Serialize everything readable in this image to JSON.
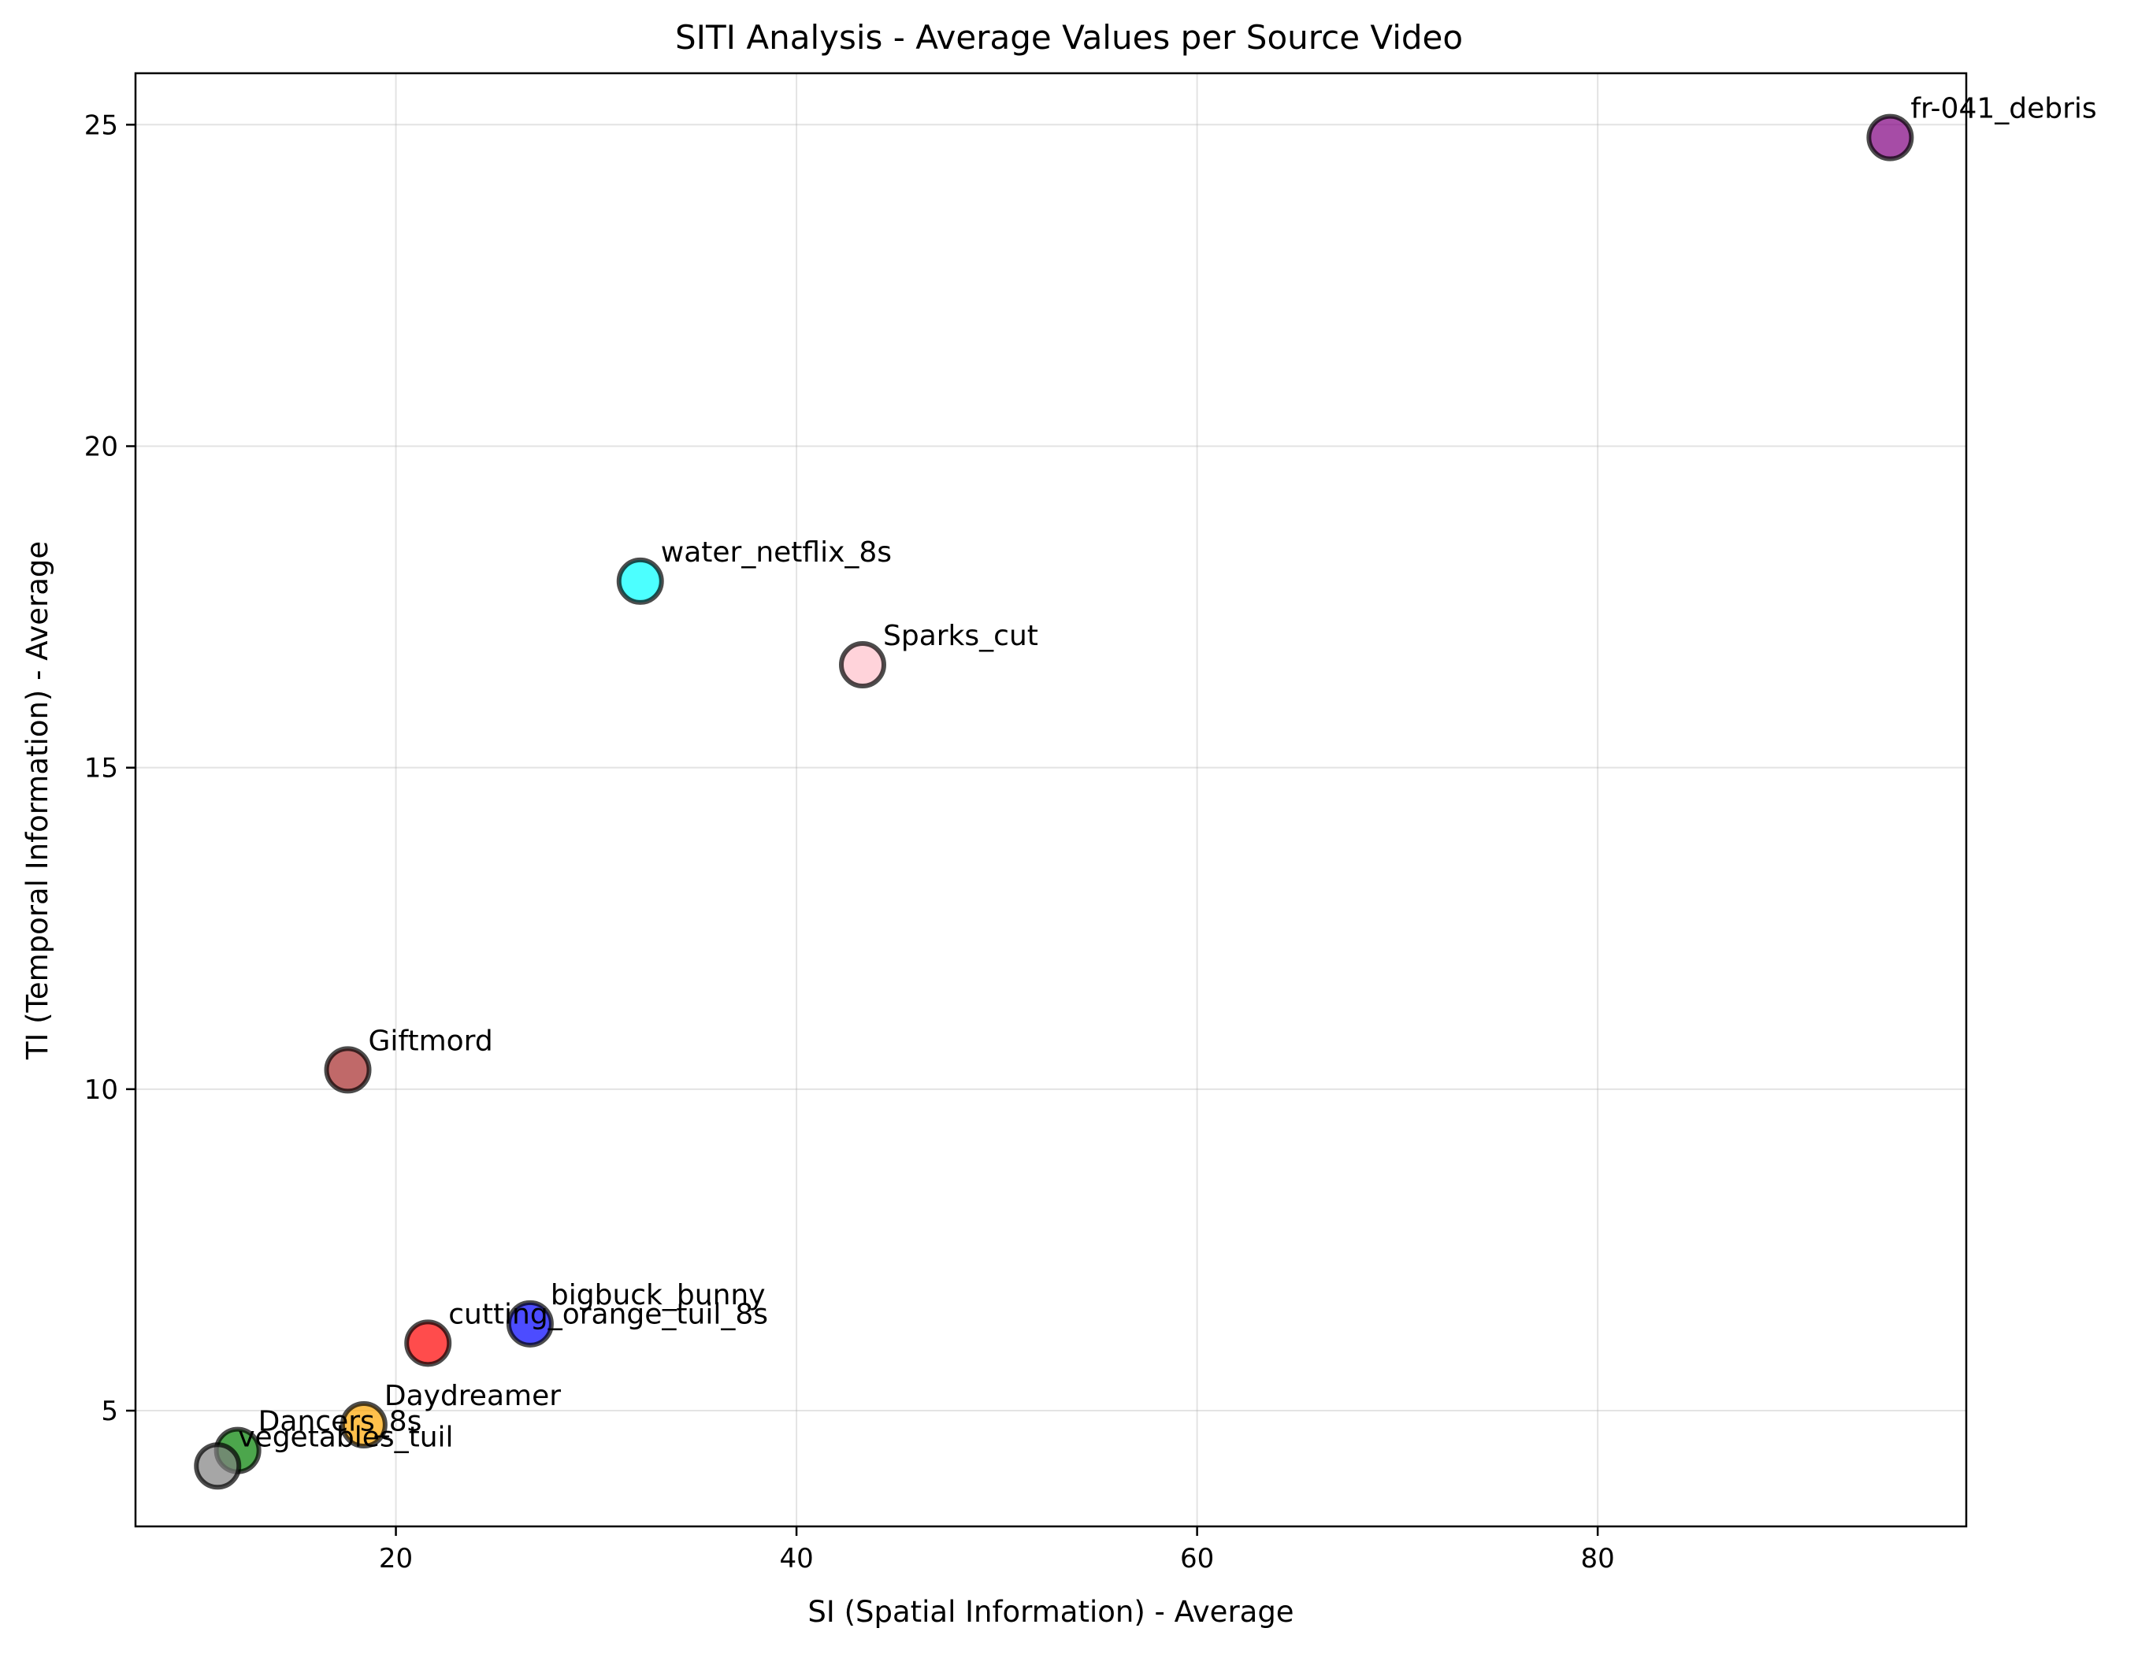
{
  "chart_data": {
    "type": "scatter",
    "title": "SITI Analysis - Average Values per Source Video",
    "xlabel": "SI (Spatial Information) - Average",
    "ylabel": "TI (Temporal Information) - Average",
    "xlim": [
      7.0,
      98.4
    ],
    "ylim": [
      3.2,
      25.8
    ],
    "xticks": [
      20,
      40,
      60,
      80
    ],
    "yticks": [
      5,
      10,
      15,
      20,
      25
    ],
    "grid": true,
    "points": [
      {
        "label": "fr-041_debris",
        "x": 94.6,
        "y": 24.8,
        "color": "#800080"
      },
      {
        "label": "water_netflix_8s",
        "x": 32.2,
        "y": 17.9,
        "color": "#00ffff"
      },
      {
        "label": "Sparks_cut",
        "x": 43.3,
        "y": 16.6,
        "color": "#ffc0cb"
      },
      {
        "label": "Giftmord",
        "x": 17.6,
        "y": 10.3,
        "color": "#a52a2a"
      },
      {
        "label": "bigbuck_bunny",
        "x": 26.7,
        "y": 6.35,
        "color": "#0000ff"
      },
      {
        "label": "cutting_orange_tuil_8s",
        "x": 21.6,
        "y": 6.05,
        "color": "#ff0000"
      },
      {
        "label": "Daydreamer",
        "x": 18.4,
        "y": 4.78,
        "color": "#ffa500"
      },
      {
        "label": "Dancers_8s",
        "x": 12.1,
        "y": 4.38,
        "color": "#008000"
      },
      {
        "label": "vegetables_tuil",
        "x": 11.1,
        "y": 4.14,
        "color": "#808080"
      }
    ]
  }
}
